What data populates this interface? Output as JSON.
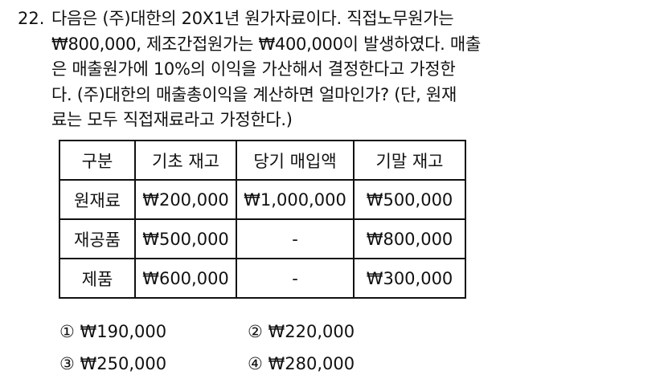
{
  "question": {
    "number": "22.",
    "lines": [
      "다음은 (주)대한의 20X1년 원가자료이다. 직접노무원가는",
      "₩800,000, 제조간접원가는 ₩400,000이 발생하였다. 매출",
      "은 매출원가에 10%의 이익을 가산해서 결정한다고 가정한",
      "다. (주)대한의 매출총이익을 계산하면 얼마인가? (단, 원재",
      "료는 모두 직접재료라고 가정한다.)"
    ]
  },
  "table": {
    "headers": [
      "구분",
      "기초 재고",
      "당기 매입액",
      "기말 재고"
    ],
    "rows": [
      [
        "원재료",
        "₩200,000",
        "₩1,000,000",
        "₩500,000"
      ],
      [
        "재공품",
        "₩500,000",
        "-",
        "₩800,000"
      ],
      [
        "제품",
        "₩600,000",
        "-",
        "₩300,000"
      ]
    ]
  },
  "options": [
    {
      "marker": "①",
      "text": "₩190,000"
    },
    {
      "marker": "②",
      "text": "₩220,000"
    },
    {
      "marker": "③",
      "text": "₩250,000"
    },
    {
      "marker": "④",
      "text": "₩280,000"
    }
  ]
}
